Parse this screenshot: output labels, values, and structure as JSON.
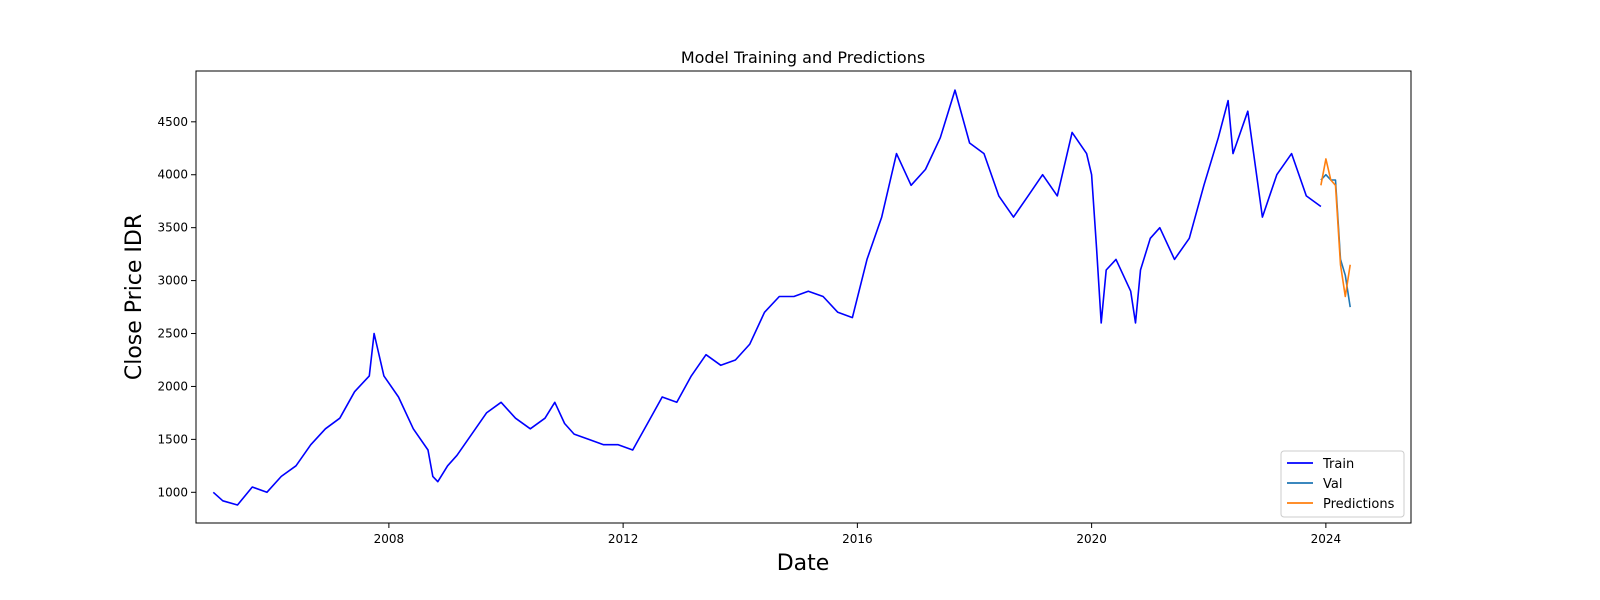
{
  "chart_data": {
    "type": "line",
    "title": "Model Training and Predictions",
    "xlabel": "Date",
    "ylabel": "Close Price IDR",
    "xlim": [
      "2004-09-15",
      "2025-06-15"
    ],
    "ylim": [
      710,
      4980
    ],
    "x_ticks": [
      "2008",
      "2012",
      "2016",
      "2020",
      "2024"
    ],
    "y_ticks": [
      1000,
      1500,
      2000,
      2500,
      3000,
      3500,
      4000,
      4500
    ],
    "grid": false,
    "legend_position": "bottom-right",
    "series": [
      {
        "name": "Train",
        "color": "#0000ff",
        "x": [
          "2005-01",
          "2005-03",
          "2005-06",
          "2005-09",
          "2005-12",
          "2006-03",
          "2006-06",
          "2006-09",
          "2006-12",
          "2007-03",
          "2007-06",
          "2007-09",
          "2007-10",
          "2007-12",
          "2008-03",
          "2008-06",
          "2008-09",
          "2008-10",
          "2008-11",
          "2009-01",
          "2009-03",
          "2009-06",
          "2009-09",
          "2009-12",
          "2010-03",
          "2010-06",
          "2010-09",
          "2010-11",
          "2011-01",
          "2011-03",
          "2011-06",
          "2011-09",
          "2011-12",
          "2012-03",
          "2012-06",
          "2012-09",
          "2012-12",
          "2013-03",
          "2013-06",
          "2013-09",
          "2013-12",
          "2014-03",
          "2014-06",
          "2014-09",
          "2014-12",
          "2015-03",
          "2015-06",
          "2015-09",
          "2015-12",
          "2016-03",
          "2016-06",
          "2016-09",
          "2016-12",
          "2017-03",
          "2017-06",
          "2017-09",
          "2017-12",
          "2018-03",
          "2018-06",
          "2018-09",
          "2018-12",
          "2019-03",
          "2019-06",
          "2019-09",
          "2019-12",
          "2020-01",
          "2020-02",
          "2020-03",
          "2020-04",
          "2020-06",
          "2020-09",
          "2020-10",
          "2020-11",
          "2021-01",
          "2021-03",
          "2021-06",
          "2021-09",
          "2021-12",
          "2022-03",
          "2022-05",
          "2022-06",
          "2022-09",
          "2022-12",
          "2023-03",
          "2023-06",
          "2023-09",
          "2023-12"
        ],
        "values": [
          1000,
          920,
          880,
          1050,
          1000,
          1150,
          1250,
          1450,
          1600,
          1700,
          1950,
          2100,
          2500,
          2100,
          1900,
          1600,
          1400,
          1150,
          1100,
          1250,
          1350,
          1550,
          1750,
          1850,
          1700,
          1600,
          1700,
          1850,
          1650,
          1550,
          1500,
          1450,
          1450,
          1400,
          1650,
          1900,
          1850,
          2100,
          2300,
          2200,
          2250,
          2400,
          2700,
          2850,
          2850,
          2900,
          2850,
          2700,
          2650,
          3200,
          3600,
          4200,
          3900,
          4050,
          4350,
          4800,
          4300,
          4200,
          3800,
          3600,
          3800,
          4000,
          3800,
          4400,
          4200,
          4000,
          3300,
          2600,
          3100,
          3200,
          2900,
          2600,
          3100,
          3400,
          3500,
          3200,
          3400,
          3900,
          4350,
          4700,
          4200,
          4600,
          3600,
          4000,
          4200,
          3800,
          3700
        ]
      },
      {
        "name": "Val",
        "color": "#1f77b4",
        "x": [
          "2023-12",
          "2024-01",
          "2024-02",
          "2024-03",
          "2024-04",
          "2024-05",
          "2024-06"
        ],
        "values": [
          3950,
          4000,
          3950,
          3950,
          3200,
          3050,
          2750
        ]
      },
      {
        "name": "Predictions",
        "color": "#ff7f0e",
        "x": [
          "2023-12",
          "2024-01",
          "2024-02",
          "2024-03",
          "2024-04",
          "2024-05",
          "2024-06"
        ],
        "values": [
          3900,
          4150,
          3950,
          3900,
          3150,
          2850,
          3150
        ]
      }
    ]
  }
}
